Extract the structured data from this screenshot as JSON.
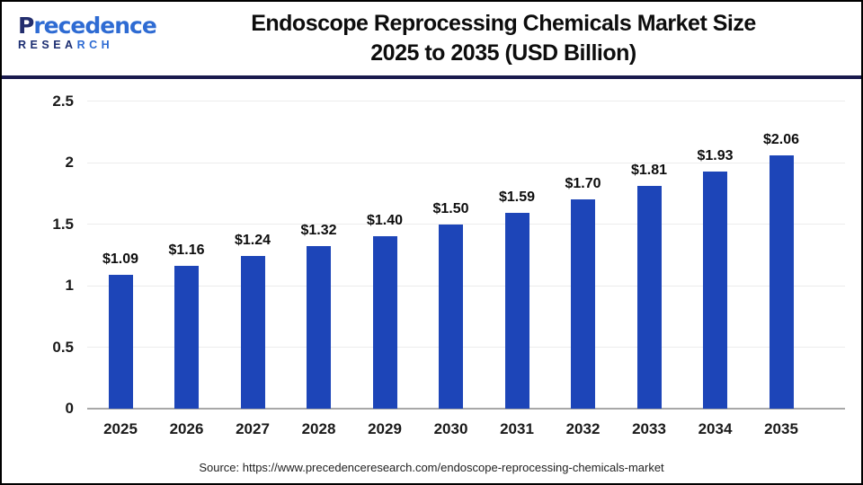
{
  "header": {
    "logo": {
      "word_p": "P",
      "word_rest": "recedence",
      "sub_a": "RESEA",
      "sub_b": "RCH"
    },
    "title_line1": "Endoscope Reprocessing Chemicals Market Size",
    "title_line2": "2025 to 2035 (USD Billion)"
  },
  "chart_data": {
    "type": "bar",
    "title": "Endoscope Reprocessing Chemicals Market Size 2025 to 2035 (USD Billion)",
    "xlabel": "",
    "ylabel": "",
    "categories": [
      "2025",
      "2026",
      "2027",
      "2028",
      "2029",
      "2030",
      "2031",
      "2032",
      "2033",
      "2034",
      "2035"
    ],
    "values": [
      1.09,
      1.16,
      1.24,
      1.32,
      1.4,
      1.5,
      1.59,
      1.7,
      1.81,
      1.93,
      2.06
    ],
    "data_labels": [
      "$1.09",
      "$1.16",
      "$1.24",
      "$1.32",
      "$1.40",
      "$1.50",
      "$1.59",
      "$1.70",
      "$1.81",
      "$1.93",
      "$2.06"
    ],
    "ylim": [
      0,
      2.5
    ],
    "yticks": [
      0,
      0.5,
      1,
      1.5,
      2,
      2.5
    ],
    "ytick_labels": [
      "0",
      "0.5",
      "1",
      "1.5",
      "2",
      "2.5"
    ],
    "grid": "horizontal",
    "legend": "none",
    "bar_color": "#1d45b8"
  },
  "footer": {
    "source": "Source: https://www.precedenceresearch.com/endoscope-reprocessing-chemicals-market"
  },
  "colors": {
    "bar": "#1d45b8",
    "divider_navy": "#191a4d",
    "gridline": "#ececec",
    "baseline": "#a8a8a8",
    "logo_navy": "#1b2d71",
    "logo_blue": "#2e6bd3"
  }
}
